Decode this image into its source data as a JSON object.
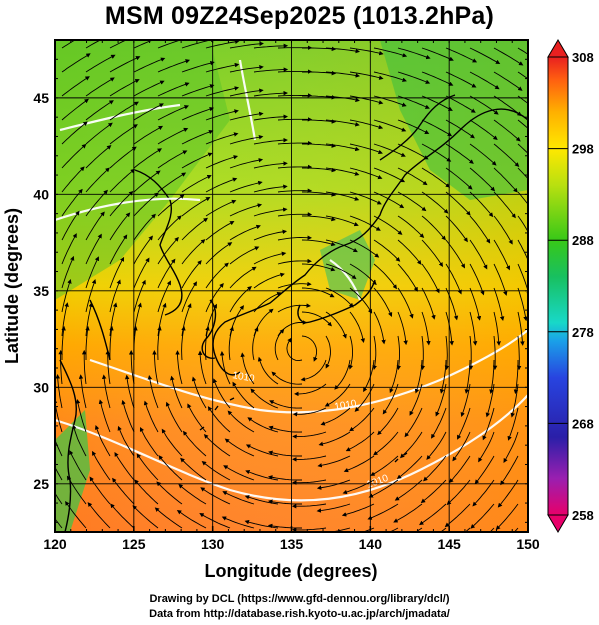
{
  "title": "MSM 09Z24Sep2025 (1013.2hPa)",
  "map": {
    "x_axis": {
      "label": "Longitude (degrees)",
      "range": [
        120,
        150
      ],
      "ticks": [
        "120",
        "125",
        "130",
        "135",
        "140",
        "145",
        "150"
      ]
    },
    "y_axis": {
      "label": "Latitude  (degrees)",
      "range": [
        22.5,
        48
      ],
      "ticks": [
        "25",
        "30",
        "35",
        "40",
        "45"
      ]
    },
    "grid": true,
    "field": "potential temperature (K) with streamlines",
    "contour_labels": [
      "1010",
      "1010",
      "1010"
    ]
  },
  "colorbar": {
    "range": [
      258,
      308
    ],
    "ticks": [
      "308",
      "298",
      "288",
      "278",
      "268",
      "258"
    ],
    "colors": [
      "#e8006a",
      "#9a1fb0",
      "#2a1fa8",
      "#2844e0",
      "#1aa0e8",
      "#18d8c8",
      "#18c060",
      "#38c818",
      "#b8e010",
      "#ffe800",
      "#ffb000",
      "#ff6010",
      "#e82020"
    ]
  },
  "credits": {
    "line1": "Drawing by DCL (https://www.gfd-dennou.org/library/dcl/)",
    "line2": "Data from http://database.rish.kyoto-u.ac.jp/arch/jmadata/"
  }
}
